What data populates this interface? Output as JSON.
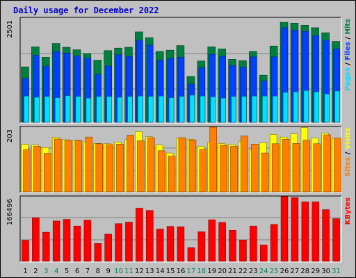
{
  "title": "Daily usage for December 2022",
  "colors": {
    "background": "#c0c0c0",
    "plot_background": "#c0c0c0",
    "grid": "#808080",
    "pages": "#00e0ff",
    "files": "#0040ff",
    "hits": "#008040",
    "sites": "#ff8000",
    "visits": "#ffff00",
    "kbytes": "#ff0000",
    "weekend_label": "#00805c",
    "weekday_label": "#000000"
  },
  "chart_data": [
    {
      "type": "bar",
      "panel": "hits-files-pages",
      "ylabel_max": "2501",
      "ylim": [
        0,
        2501
      ],
      "side_label": {
        "parts": [
          "Pages",
          "Files",
          "Hits"
        ],
        "separator": " / "
      },
      "categories": [
        "1",
        "2",
        "3",
        "4",
        "5",
        "6",
        "7",
        "8",
        "9",
        "10",
        "11",
        "12",
        "13",
        "14",
        "15",
        "16",
        "17",
        "18",
        "19",
        "20",
        "21",
        "22",
        "23",
        "24",
        "25",
        "26",
        "27",
        "28",
        "29",
        "30",
        "31"
      ],
      "weekend_days": [
        "3",
        "4",
        "10",
        "11",
        "17",
        "18",
        "24",
        "25",
        "31"
      ],
      "series": [
        {
          "name": "Hits",
          "values": [
            1330,
            1810,
            1560,
            1890,
            1800,
            1740,
            1650,
            1490,
            1720,
            1780,
            1800,
            2170,
            2030,
            1700,
            1730,
            1840,
            1100,
            1470,
            1810,
            1760,
            1510,
            1480,
            1700,
            1130,
            1830,
            2400,
            2380,
            2330,
            2270,
            2150,
            1940
          ]
        },
        {
          "name": "Files",
          "values": [
            1050,
            1610,
            1350,
            1700,
            1660,
            1590,
            1540,
            1150,
            1350,
            1620,
            1580,
            1970,
            1850,
            1490,
            1530,
            1560,
            920,
            1310,
            1630,
            1580,
            1360,
            1320,
            1570,
            990,
            1570,
            2270,
            2210,
            2180,
            2080,
            1970,
            1760
          ]
        },
        {
          "name": "Pages",
          "values": [
            630,
            600,
            620,
            590,
            640,
            620,
            580,
            620,
            620,
            600,
            620,
            630,
            620,
            630,
            590,
            620,
            650,
            630,
            610,
            580,
            620,
            620,
            630,
            630,
            630,
            720,
            730,
            760,
            730,
            680,
            750
          ]
        }
      ]
    },
    {
      "type": "bar",
      "panel": "visits-sites",
      "ylabel_max": "203",
      "ylim": [
        0,
        203
      ],
      "side_label": {
        "parts": [
          "Sites",
          "Visits"
        ],
        "separator": " / "
      },
      "categories": [
        "1",
        "2",
        "3",
        "4",
        "5",
        "6",
        "7",
        "8",
        "9",
        "10",
        "11",
        "12",
        "13",
        "14",
        "15",
        "16",
        "17",
        "18",
        "19",
        "20",
        "21",
        "22",
        "23",
        "24",
        "25",
        "26",
        "27",
        "28",
        "29",
        "30",
        "31"
      ],
      "weekend_days": [
        "3",
        "4",
        "10",
        "11",
        "17",
        "18",
        "24",
        "25",
        "31"
      ],
      "series": [
        {
          "name": "Visits",
          "values": [
            149,
            147,
            139,
            171,
            164,
            162,
            157,
            152,
            151,
            156,
            164,
            189,
            173,
            147,
            122,
            169,
            165,
            143,
            156,
            152,
            148,
            159,
            132,
            154,
            180,
            172,
            182,
            202,
            169,
            184,
            168
          ]
        },
        {
          "name": "Sites",
          "values": [
            132,
            143,
            121,
            166,
            161,
            161,
            172,
            151,
            148,
            150,
            178,
            160,
            170,
            129,
            112,
            170,
            163,
            133,
            203,
            146,
            143,
            175,
            150,
            122,
            151,
            165,
            152,
            162,
            151,
            179,
            169
          ]
        }
      ]
    },
    {
      "type": "bar",
      "panel": "kbytes",
      "ylabel_max": "166496",
      "ylim": [
        0,
        166496
      ],
      "side_label": {
        "parts": [
          "KBytes"
        ],
        "separator": ""
      },
      "categories": [
        "1",
        "2",
        "3",
        "4",
        "5",
        "6",
        "7",
        "8",
        "9",
        "10",
        "11",
        "12",
        "13",
        "14",
        "15",
        "16",
        "17",
        "18",
        "19",
        "20",
        "21",
        "22",
        "23",
        "24",
        "25",
        "26",
        "27",
        "28",
        "29",
        "30",
        "31"
      ],
      "weekend_days": [
        "3",
        "4",
        "10",
        "11",
        "17",
        "18",
        "24",
        "25",
        "31"
      ],
      "series": [
        {
          "name": "KBytes",
          "values": [
            54000,
            112000,
            75000,
            104000,
            108000,
            91000,
            106000,
            46000,
            70000,
            97000,
            101000,
            137000,
            131000,
            83000,
            90000,
            89000,
            35000,
            76000,
            107000,
            100000,
            80000,
            55000,
            91000,
            42000,
            95000,
            167000,
            164000,
            153000,
            153000,
            133000,
            110000
          ]
        }
      ]
    }
  ]
}
